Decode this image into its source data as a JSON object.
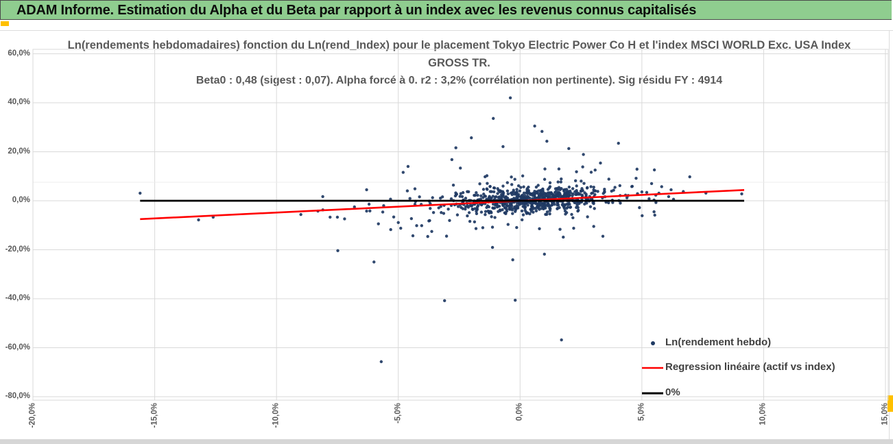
{
  "banner": {
    "title": "ADAM Informe. Estimation du Alpha et du Beta par rapport à un index avec les revenus connus capitalisés",
    "bg_color": "#8FCD8F",
    "text_color": "#0d0d0d"
  },
  "accents": {
    "gold_marker_color": "#FFC000",
    "gridline_color": "#D9D9D9",
    "faint_line_color": "#ECECEC",
    "plot_border_color": "#D9D9D9"
  },
  "stats": {
    "beta0": "0,48",
    "sigest": "0,07",
    "r2": "3,2%",
    "sig_residu_fy": "4914",
    "alpha": "forcé à 0"
  },
  "chart_data": {
    "type": "scatter",
    "title_line1": "Ln(rendements hebdomadaires) fonction du Ln(rend_Index) pour le placement Tokyo Electric Power Co H et l'index MSCI WORLD Exc. USA Index",
    "title_line2": "GROSS TR.",
    "subtitle": "Beta0 : 0,48 (sigest : 0,07). Alpha forcé à 0. r2 : 3,2% (corrélation non pertinente). Sig résidu FY : 4914",
    "xlim": [
      -20,
      15
    ],
    "ylim": [
      -80,
      60
    ],
    "x_ticks": [
      "-20,0%",
      "-15,0%",
      "-10,0%",
      "-5,0%",
      "0,0%",
      "5,0%",
      "10,0%",
      "15,0%"
    ],
    "x_tick_values": [
      -20,
      -15,
      -10,
      -5,
      0,
      5,
      10,
      15
    ],
    "y_ticks": [
      "60,0%",
      "40,0%",
      "20,0%",
      "0,0%",
      "-20,0%",
      "-40,0%",
      "-60,0%",
      "-80,0%"
    ],
    "y_tick_values": [
      60,
      40,
      20,
      0,
      -20,
      -40,
      -60,
      -80
    ],
    "grid": true,
    "faint_extra_gridline_pct": 7.55,
    "legend_position": "bottom-right",
    "series": [
      {
        "name": "Ln(rendement hebdo)",
        "kind": "scatter",
        "color": "#1F3A63",
        "outlier_points": [
          [
            -15.6,
            3.1
          ],
          [
            -13.2,
            -7.8
          ],
          [
            -12.6,
            -6.7
          ],
          [
            -9.0,
            -5.6
          ],
          [
            -8.3,
            -4.2
          ],
          [
            -8.1,
            1.7
          ],
          [
            -7.8,
            -6.7
          ],
          [
            -7.5,
            -6.7
          ],
          [
            -6.8,
            -2.5
          ],
          [
            -6.3,
            -4.2
          ],
          [
            -6.2,
            -1.4
          ],
          [
            -6.3,
            4.5
          ],
          [
            -5.6,
            -2.0
          ],
          [
            -5.0,
            -8.9
          ],
          [
            -4.8,
            11.6
          ],
          [
            -4.9,
            -11.2
          ],
          [
            -4.4,
            -14.3
          ],
          [
            -5.7,
            -65.7
          ],
          [
            -3.1,
            -40.8
          ],
          [
            -0.2,
            -40.6
          ],
          [
            -0.3,
            -24.1
          ],
          [
            1.0,
            -21.8
          ],
          [
            1.7,
            -56.8
          ],
          [
            -0.4,
            42.0
          ],
          [
            -1.1,
            33.6
          ],
          [
            0.6,
            30.5
          ],
          [
            0.9,
            28.3
          ],
          [
            -2.0,
            25.7
          ],
          [
            1.1,
            24.3
          ],
          [
            -0.7,
            22.1
          ],
          [
            2.0,
            21.3
          ],
          [
            -4.6,
            14.0
          ],
          [
            -2.8,
            16.8
          ],
          [
            2.6,
            18.9
          ],
          [
            3.3,
            15.4
          ],
          [
            4.8,
            12.9
          ],
          [
            3.4,
            -14.5
          ],
          [
            2.2,
            -11.2
          ],
          [
            5.4,
            7.0
          ],
          [
            5.0,
            3.6
          ],
          [
            5.2,
            3.4
          ],
          [
            5.7,
            3.1
          ],
          [
            6.2,
            4.5
          ],
          [
            6.1,
            1.7
          ],
          [
            6.3,
            0.6
          ],
          [
            5.5,
            0.3
          ],
          [
            4.9,
            -2.8
          ],
          [
            5.5,
            -4.5
          ],
          [
            9.1,
            2.8
          ]
        ],
        "cluster": {
          "seed": 20240917,
          "beta": 0.48,
          "groups": [
            {
              "n": 610,
              "x_mean": 0.5,
              "x_sd": 1.55,
              "y_sd": 2.5,
              "x_clamp": [
                -5.5,
                6.5
              ],
              "y_clamp": [
                -12,
                12
              ]
            },
            {
              "n": 150,
              "x_mean": 0.2,
              "x_sd": 2.9,
              "y_sd": 5.2,
              "x_clamp": [
                -9.3,
                8.9
              ],
              "y_clamp": [
                -19,
                19
              ]
            },
            {
              "n": 48,
              "x_mean": 0.3,
              "x_sd": 3.4,
              "y_sd": 10.5,
              "x_clamp": [
                -8.0,
                7.0
              ],
              "y_clamp": [
                -25,
                25
              ]
            }
          ]
        }
      },
      {
        "name": "Regression linéaire (actif vs index)",
        "kind": "line",
        "color": "#FF0000",
        "width": 2.6,
        "x1": -15.6,
        "y1": -7.5,
        "x2": 9.2,
        "y2": 4.4
      },
      {
        "name": "0%",
        "kind": "line",
        "color": "#000000",
        "width": 2.8,
        "x1": -15.6,
        "y1": 0,
        "x2": 9.2,
        "y2": 0
      }
    ],
    "legend_items": [
      {
        "label": "Ln(rendement hebdo)",
        "marker": "dot",
        "color": "#1F3A63"
      },
      {
        "label": "Regression linéaire (actif vs index)",
        "marker": "line",
        "color": "#FF0000"
      },
      {
        "label": "0%",
        "marker": "line",
        "color": "#000000"
      }
    ]
  }
}
